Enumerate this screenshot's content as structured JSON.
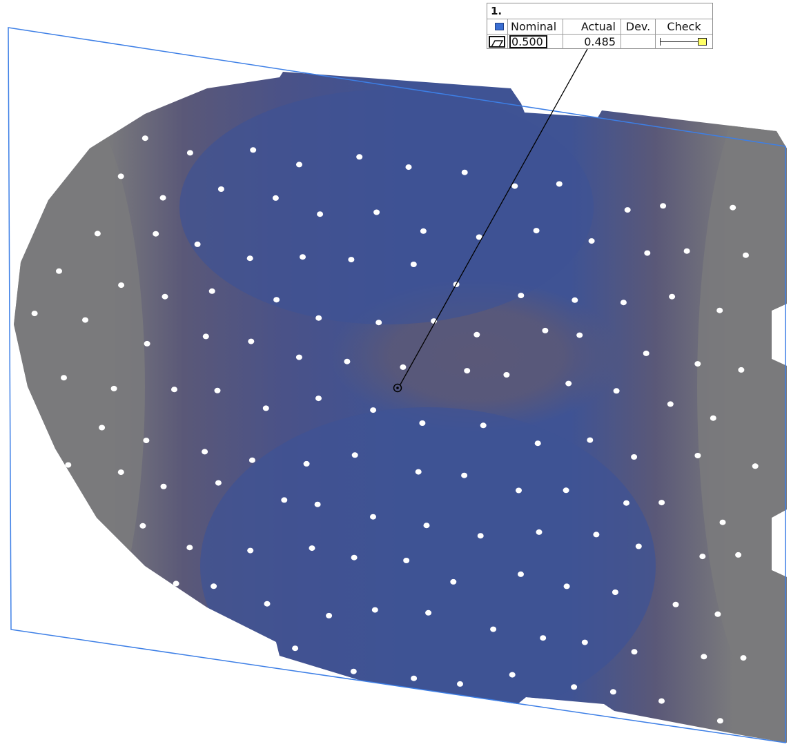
{
  "colors": {
    "part_blue": "#3f5394",
    "part_purple": "#5a5878",
    "part_gray": "#7a7a7c",
    "plane_outline": "#3d7fe6",
    "leader_line": "#000000",
    "swatch_blue": "#3a6ed2",
    "indicator_yellow": "#ffff66"
  },
  "label": {
    "title": "1.",
    "headers": {
      "nominal": "Nominal",
      "actual": "Actual",
      "dev": "Dev.",
      "check": "Check"
    },
    "row": {
      "icon": "flatness-icon",
      "nominal": "0.500",
      "actual": "0.485",
      "dev": "",
      "check_indicator": "within-tolerance"
    }
  }
}
